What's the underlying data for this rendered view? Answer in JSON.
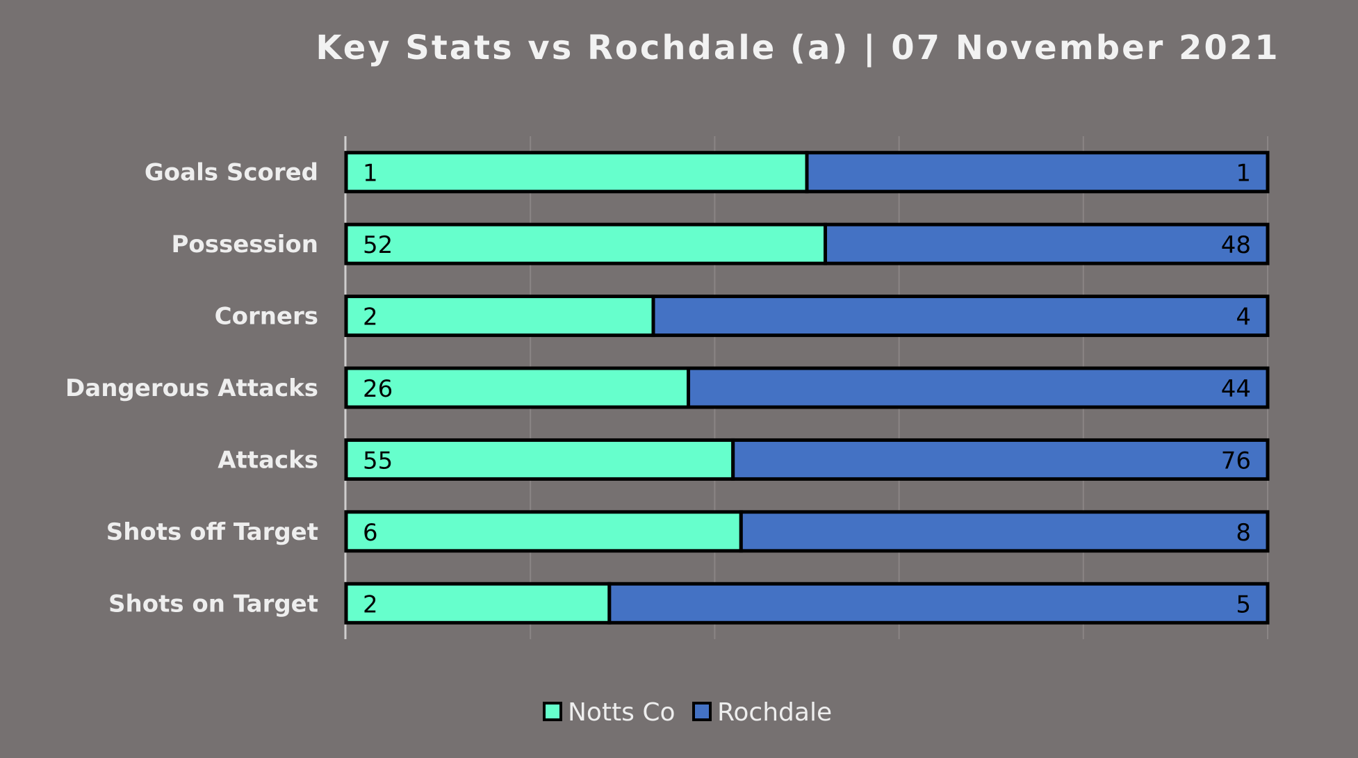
{
  "chart_data": {
    "type": "bar",
    "orientation": "horizontal",
    "stacked": "percent",
    "title": "Key Stats vs Rochdale (a) | 07 November 2021",
    "categories": [
      "Goals Scored",
      "Possession",
      "Corners",
      "Dangerous Attacks",
      "Attacks",
      "Shots off Target",
      "Shots on Target"
    ],
    "series": [
      {
        "name": "Notts Co",
        "color": "#66ffcc",
        "values": [
          1,
          52,
          2,
          26,
          55,
          6,
          2
        ]
      },
      {
        "name": "Rochdale",
        "color": "#4472c4",
        "values": [
          1,
          48,
          4,
          44,
          76,
          8,
          5
        ]
      }
    ],
    "xlim": [
      0,
      100
    ],
    "grid": true,
    "legend": "bottom"
  }
}
